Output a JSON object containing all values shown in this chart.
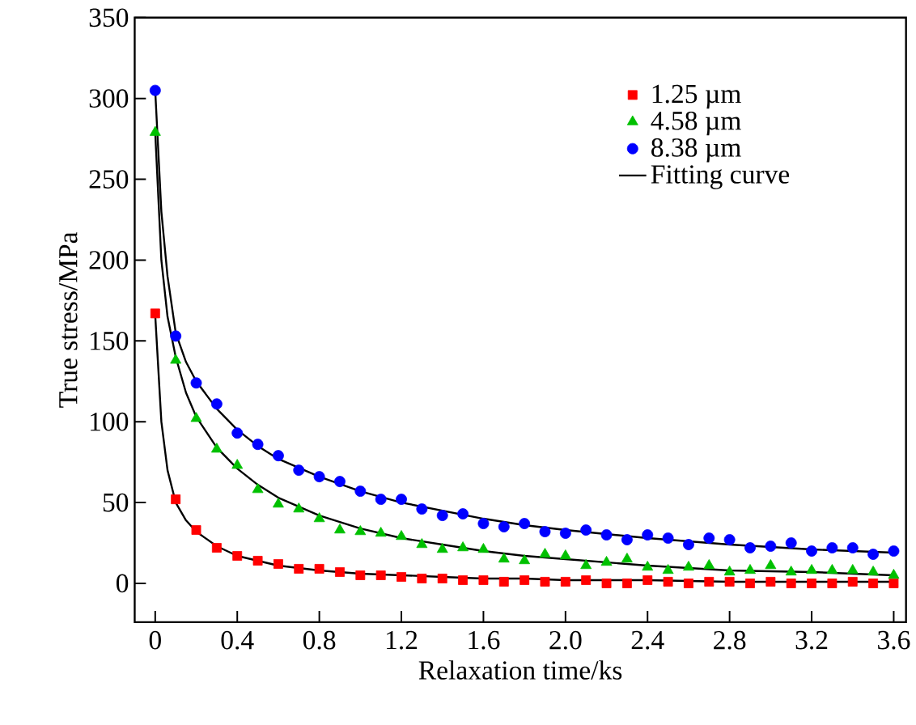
{
  "chart_data": {
    "type": "scatter",
    "xlabel": "Relaxation time/ks",
    "ylabel": "True stress/MPa",
    "xlim": [
      -0.1,
      3.66
    ],
    "ylim": [
      -24,
      350
    ],
    "xticks": [
      0,
      0.4,
      0.8,
      1.2,
      1.6,
      {
        "value": 2.0,
        "label": "2.0"
      },
      2.4,
      2.8,
      3.2,
      3.6
    ],
    "yticks": [
      0,
      50,
      100,
      150,
      200,
      250,
      300,
      350
    ],
    "legend": "top right",
    "grid": false,
    "x": [
      0,
      0.1,
      0.2,
      0.3,
      0.4,
      0.5,
      0.6,
      0.7,
      0.8,
      0.9,
      1.0,
      1.1,
      1.2,
      1.3,
      1.4,
      1.5,
      1.6,
      1.7,
      1.8,
      1.9,
      2.0,
      2.1,
      2.2,
      2.3,
      2.4,
      2.5,
      2.6,
      2.7,
      2.8,
      2.9,
      3.0,
      3.1,
      3.2,
      3.3,
      3.4,
      3.5,
      3.6
    ],
    "series": [
      {
        "name": "1.25 µm",
        "color": "#ff0000",
        "marker": "square",
        "values": [
          167,
          52,
          33,
          22,
          17,
          14,
          12,
          9,
          9,
          7,
          5,
          5,
          4,
          3,
          3,
          2,
          2,
          1,
          2,
          1,
          1,
          2,
          0,
          0,
          2,
          1,
          0,
          1,
          1,
          0,
          1,
          0,
          0,
          0,
          1,
          0,
          0
        ]
      },
      {
        "name": "4.58 µm",
        "color": "#00c000",
        "marker": "triangle",
        "values": [
          279,
          138,
          102,
          83,
          73,
          58,
          49,
          46,
          40,
          33,
          32,
          31,
          29,
          24,
          21,
          22,
          21,
          15,
          14,
          18,
          17,
          11,
          13,
          15,
          10,
          8,
          10,
          11,
          7,
          8,
          11,
          7,
          8,
          8,
          8,
          7,
          5
        ]
      },
      {
        "name": "8.38 µm",
        "color": "#0000ff",
        "marker": "circle",
        "values": [
          305,
          153,
          124,
          111,
          93,
          86,
          79,
          70,
          66,
          63,
          57,
          52,
          52,
          46,
          42,
          43,
          37,
          35,
          37,
          32,
          31,
          33,
          30,
          27,
          30,
          28,
          24,
          28,
          27,
          22,
          23,
          25,
          20,
          22,
          22,
          18,
          20
        ]
      },
      {
        "name": "Fitting curve",
        "type": "line",
        "color": "#000000",
        "marker": "none",
        "x": [
          0,
          0.03,
          0.06,
          0.1,
          0.15,
          0.2,
          0.3,
          0.4,
          0.5,
          0.6,
          0.8,
          1.0,
          1.2,
          1.4,
          1.6,
          1.8,
          2.0,
          2.4,
          2.8,
          3.2,
          3.6
        ],
        "values": [
          166,
          100,
          70,
          50,
          39,
          32,
          23,
          17,
          14,
          11,
          8,
          6,
          5,
          4,
          3,
          3,
          2,
          2,
          1,
          1,
          1
        ]
      },
      {
        "type": "line",
        "color": "#000000",
        "marker": "none",
        "x": [
          0,
          0.03,
          0.06,
          0.1,
          0.15,
          0.2,
          0.3,
          0.4,
          0.5,
          0.6,
          0.8,
          1.0,
          1.2,
          1.4,
          1.6,
          1.8,
          2.0,
          2.4,
          2.8,
          3.2,
          3.6
        ],
        "values": [
          279,
          200,
          165,
          140,
          118,
          103,
          84,
          71,
          61,
          53,
          42,
          34,
          28,
          24,
          20,
          17,
          15,
          11,
          8,
          7,
          5
        ]
      },
      {
        "type": "line",
        "color": "#000000",
        "marker": "none",
        "x": [
          0,
          0.03,
          0.06,
          0.1,
          0.15,
          0.2,
          0.3,
          0.4,
          0.5,
          0.6,
          0.8,
          1.0,
          1.2,
          1.4,
          1.6,
          1.8,
          2.0,
          2.4,
          2.8,
          3.2,
          3.6
        ],
        "values": [
          305,
          230,
          190,
          155,
          137,
          125,
          108,
          95,
          85,
          77,
          66,
          57,
          50,
          45,
          40,
          36,
          33,
          28,
          24,
          21,
          19
        ]
      }
    ]
  }
}
